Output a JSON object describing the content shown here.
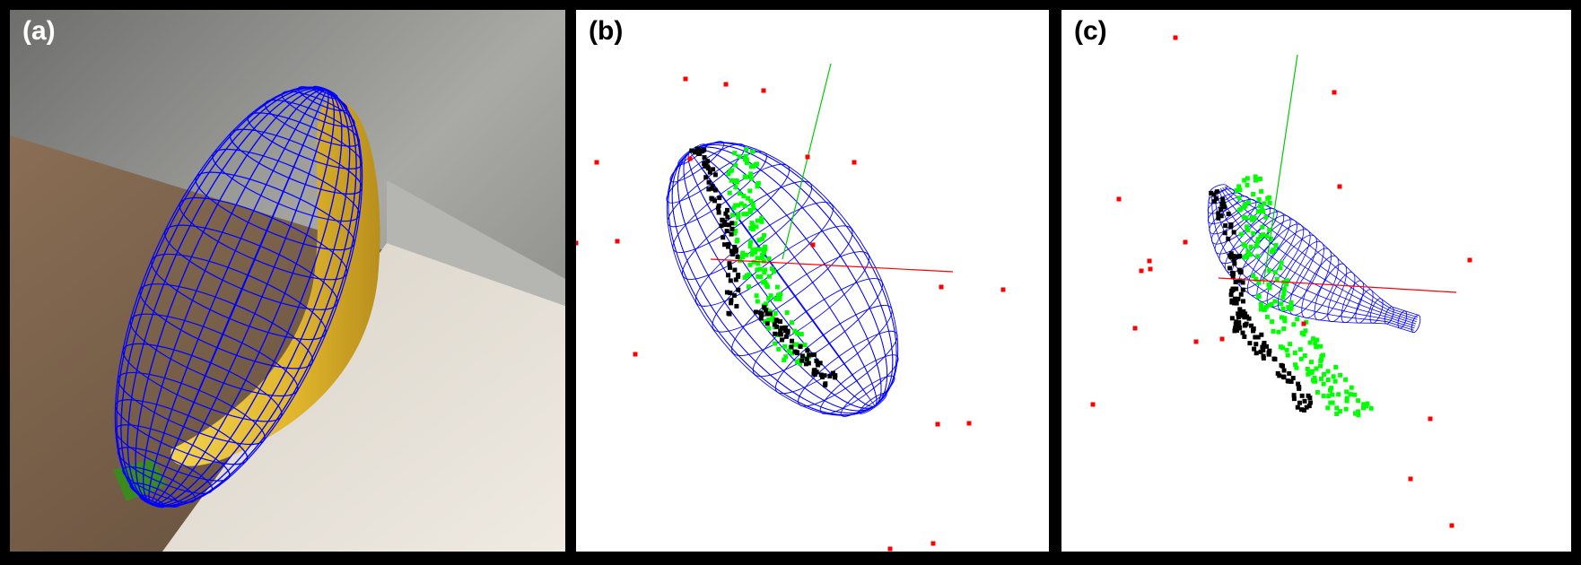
{
  "panels": [
    {
      "label": "(a)"
    },
    {
      "label": "(b)"
    },
    {
      "label": "(c)"
    }
  ],
  "colors": {
    "frame": "#000000",
    "wireframe": "#0000ff",
    "outlier_points": "#ff0000",
    "inlier_points_front": "#00ff00",
    "inlier_points_back": "#000000",
    "axis_x": "#ff0000",
    "axis_y": "#00cc00",
    "banana": "#e8c43a",
    "stem": "#3a8a1e"
  }
}
